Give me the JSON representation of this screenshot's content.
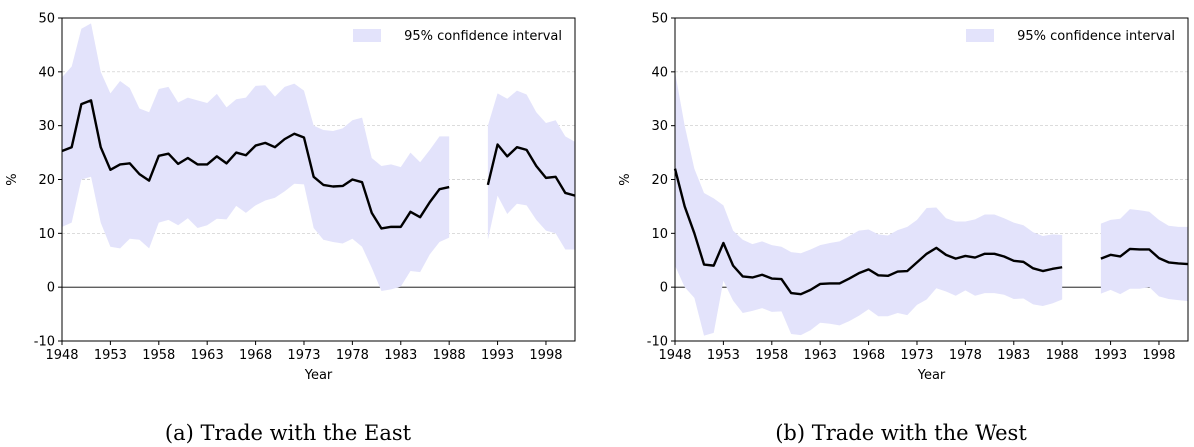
{
  "chart_data": [
    {
      "type": "line",
      "caption": "(a) Trade with the East",
      "xlabel": "Year",
      "ylabel": "%",
      "xlim": [
        1948,
        2001
      ],
      "ylim": [
        -10,
        50
      ],
      "yticks": [
        -10,
        0,
        10,
        20,
        30,
        40,
        50
      ],
      "xticks": [
        1948,
        1953,
        1958,
        1963,
        1968,
        1973,
        1978,
        1983,
        1988,
        1993,
        1998
      ],
      "grid": "y-dashed",
      "legend": {
        "label": "95% confidence interval",
        "position": "top-right"
      },
      "colors": {
        "band": "#e3e3fb",
        "line": "#000000"
      },
      "segments": [
        {
          "x": [
            1948,
            1949,
            1950,
            1951,
            1952,
            1953,
            1954,
            1955,
            1956,
            1957,
            1958,
            1959,
            1960,
            1961,
            1962,
            1963,
            1964,
            1965,
            1966,
            1967,
            1968,
            1969,
            1970,
            1971,
            1972,
            1973,
            1974,
            1975,
            1976,
            1977,
            1978,
            1979,
            1980,
            1981,
            1982,
            1983,
            1984,
            1985,
            1986,
            1987,
            1988
          ],
          "estimate": [
            25.3,
            26.0,
            34.0,
            34.7,
            26.0,
            21.8,
            22.8,
            23.0,
            21.0,
            19.8,
            24.4,
            24.8,
            22.9,
            24.0,
            22.8,
            22.8,
            24.3,
            23.0,
            25.0,
            24.5,
            26.3,
            26.8,
            26.0,
            27.5,
            28.5,
            27.8,
            20.5,
            19.0,
            18.7,
            18.8,
            20.0,
            19.5,
            13.8,
            10.9,
            11.2,
            11.2,
            14.0,
            13.0,
            15.8,
            18.2,
            18.6
          ],
          "upper": [
            39.0,
            41.0,
            48.0,
            49.0,
            40.0,
            36.0,
            38.3,
            37.0,
            33.2,
            32.5,
            36.8,
            37.2,
            34.3,
            35.2,
            34.7,
            34.2,
            35.9,
            33.4,
            34.9,
            35.2,
            37.4,
            37.5,
            35.4,
            37.2,
            37.8,
            36.5,
            30.0,
            29.2,
            29.0,
            29.5,
            31.0,
            31.5,
            24.0,
            22.5,
            22.8,
            22.3,
            25.0,
            23.2,
            25.5,
            28.0,
            28.0
          ],
          "lower": [
            11.2,
            12.0,
            20.0,
            20.5,
            12.0,
            7.5,
            7.2,
            9.0,
            8.8,
            7.2,
            12.0,
            12.5,
            11.5,
            12.8,
            11.0,
            11.5,
            12.7,
            12.6,
            15.1,
            13.8,
            15.2,
            16.1,
            16.6,
            17.8,
            19.2,
            19.1,
            11.0,
            8.8,
            8.4,
            8.1,
            9.0,
            7.5,
            3.6,
            -0.7,
            -0.4,
            0.1,
            3.0,
            2.8,
            6.1,
            8.4,
            9.2
          ]
        },
        {
          "x": [
            1992,
            1993,
            1994,
            1995,
            1996,
            1997,
            1998,
            1999,
            2000,
            2001
          ],
          "estimate": [
            19.0,
            26.5,
            24.3,
            26.0,
            25.5,
            22.5,
            20.3,
            20.5,
            17.5,
            17.0
          ],
          "upper": [
            30.0,
            36.0,
            35.0,
            36.5,
            35.8,
            32.5,
            30.5,
            31.0,
            28.0,
            27.0
          ],
          "lower": [
            8.8,
            17.0,
            13.6,
            15.5,
            15.2,
            12.5,
            10.5,
            10.0,
            7.0,
            7.0
          ]
        }
      ]
    },
    {
      "type": "line",
      "caption": "(b) Trade with the West",
      "xlabel": "Year",
      "ylabel": "%",
      "xlim": [
        1948,
        2001
      ],
      "ylim": [
        -10,
        50
      ],
      "yticks": [
        -10,
        0,
        10,
        20,
        30,
        40,
        50
      ],
      "xticks": [
        1948,
        1953,
        1958,
        1963,
        1968,
        1973,
        1978,
        1983,
        1988,
        1993,
        1998
      ],
      "grid": "y-dashed",
      "legend": {
        "label": "95% confidence interval",
        "position": "top-right"
      },
      "colors": {
        "band": "#e3e3fb",
        "line": "#000000"
      },
      "segments": [
        {
          "x": [
            1948,
            1949,
            1950,
            1951,
            1952,
            1953,
            1954,
            1955,
            1956,
            1957,
            1958,
            1959,
            1960,
            1961,
            1962,
            1963,
            1964,
            1965,
            1966,
            1967,
            1968,
            1969,
            1970,
            1971,
            1972,
            1973,
            1974,
            1975,
            1976,
            1977,
            1978,
            1979,
            1980,
            1981,
            1982,
            1983,
            1984,
            1985,
            1986,
            1987,
            1988
          ],
          "estimate": [
            22.0,
            15.0,
            10.0,
            4.2,
            4.0,
            8.2,
            4.0,
            2.0,
            1.8,
            2.3,
            1.6,
            1.5,
            -1.1,
            -1.3,
            -0.5,
            0.6,
            0.7,
            0.7,
            1.6,
            2.6,
            3.3,
            2.2,
            2.1,
            2.9,
            3.0,
            4.6,
            6.2,
            7.3,
            6.0,
            5.3,
            5.8,
            5.5,
            6.2,
            6.2,
            5.7,
            4.9,
            4.7,
            3.5,
            3.0,
            3.4,
            3.7
          ],
          "upper": [
            40.0,
            30.0,
            22.0,
            17.5,
            16.5,
            15.2,
            10.5,
            8.8,
            8.0,
            8.5,
            7.8,
            7.5,
            6.5,
            6.3,
            7.0,
            7.8,
            8.2,
            8.5,
            9.5,
            10.5,
            10.7,
            9.8,
            9.6,
            10.6,
            11.2,
            12.5,
            14.7,
            14.8,
            12.8,
            12.2,
            12.2,
            12.6,
            13.5,
            13.5,
            12.8,
            12.0,
            11.5,
            10.2,
            9.5,
            9.8,
            9.7
          ],
          "lower": [
            4.0,
            0.0,
            -2.0,
            -9.0,
            -8.5,
            1.2,
            -2.5,
            -4.8,
            -4.4,
            -3.9,
            -4.6,
            -4.5,
            -8.7,
            -8.9,
            -8.0,
            -6.6,
            -6.8,
            -7.1,
            -6.3,
            -5.3,
            -4.1,
            -5.4,
            -5.4,
            -4.8,
            -5.2,
            -3.3,
            -2.3,
            -0.2,
            -0.8,
            -1.6,
            -0.6,
            -1.6,
            -1.1,
            -1.1,
            -1.4,
            -2.2,
            -2.1,
            -3.2,
            -3.5,
            -3.0,
            -2.3
          ]
        },
        {
          "x": [
            1992,
            1993,
            1994,
            1995,
            1996,
            1997,
            1998,
            1999,
            2000,
            2001
          ],
          "estimate": [
            5.3,
            6.0,
            5.7,
            7.1,
            7.0,
            7.0,
            5.4,
            4.6,
            4.4,
            4.3
          ],
          "upper": [
            11.8,
            12.5,
            12.7,
            14.5,
            14.3,
            14.0,
            12.5,
            11.4,
            11.2,
            11.2
          ],
          "lower": [
            -1.2,
            -0.5,
            -1.3,
            -0.3,
            -0.3,
            0.0,
            -1.7,
            -2.2,
            -2.4,
            -2.6
          ]
        }
      ]
    }
  ]
}
